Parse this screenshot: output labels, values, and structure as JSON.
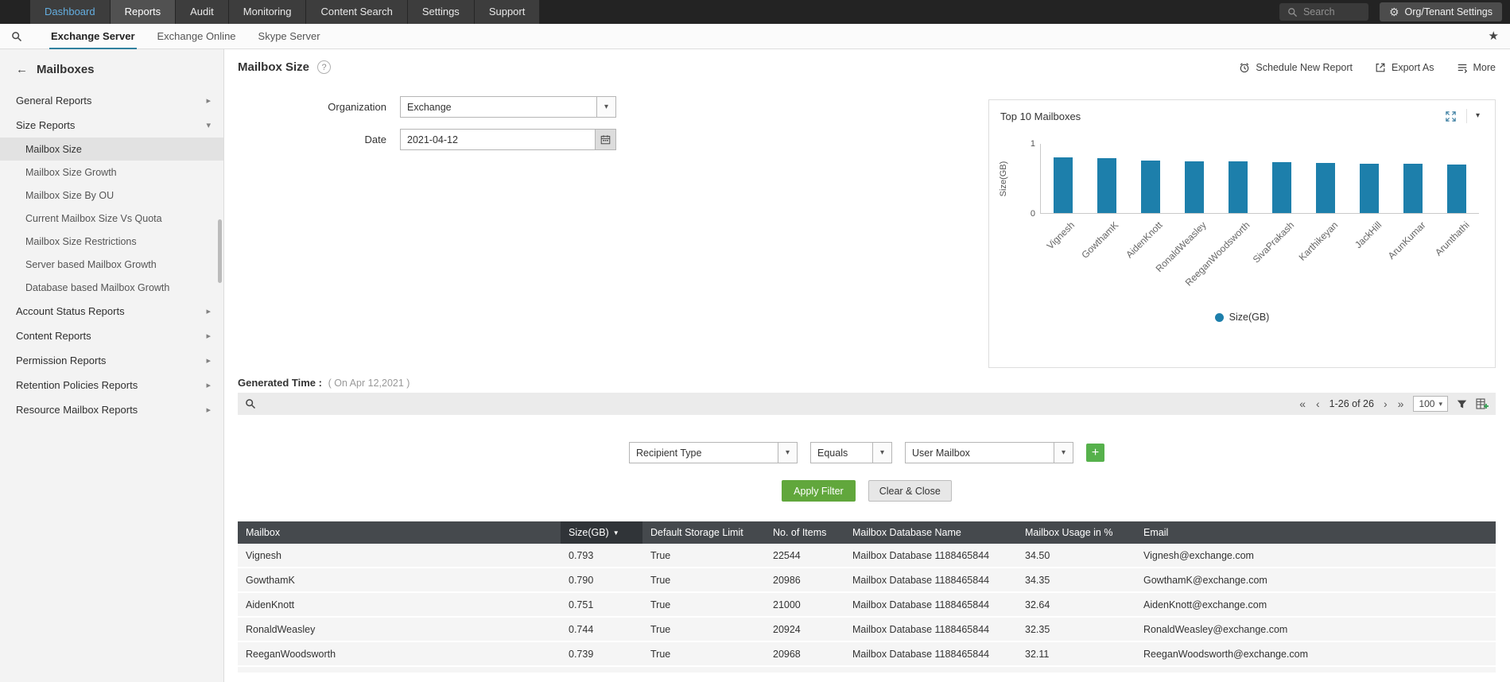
{
  "topnav": {
    "tabs": [
      {
        "label": "Dashboard",
        "active": false,
        "accent": true
      },
      {
        "label": "Reports",
        "active": true
      },
      {
        "label": "Audit",
        "active": false
      },
      {
        "label": "Monitoring",
        "active": false
      },
      {
        "label": "Content Search",
        "active": false
      },
      {
        "label": "Settings",
        "active": false
      },
      {
        "label": "Support",
        "active": false
      }
    ],
    "search_placeholder": "Search",
    "org_settings_label": "Org/Tenant Settings"
  },
  "subnav": {
    "tabs": [
      {
        "label": "Exchange Server",
        "active": true
      },
      {
        "label": "Exchange Online",
        "active": false
      },
      {
        "label": "Skype Server",
        "active": false
      }
    ]
  },
  "sidebar": {
    "back_title": "Mailboxes",
    "items": [
      {
        "label": "General Reports",
        "state": "collapsed"
      },
      {
        "label": "Size Reports",
        "state": "expanded",
        "children": [
          {
            "label": "Mailbox Size",
            "selected": true
          },
          {
            "label": "Mailbox Size Growth"
          },
          {
            "label": "Mailbox Size By OU"
          },
          {
            "label": "Current Mailbox Size Vs Quota"
          },
          {
            "label": "Mailbox Size Restrictions"
          },
          {
            "label": "Server based Mailbox Growth"
          },
          {
            "label": "Database based Mailbox Growth"
          }
        ]
      },
      {
        "label": "Account Status Reports",
        "state": "collapsed"
      },
      {
        "label": "Content Reports",
        "state": "collapsed"
      },
      {
        "label": "Permission Reports",
        "state": "collapsed"
      },
      {
        "label": "Retention Policies Reports",
        "state": "collapsed"
      },
      {
        "label": "Resource Mailbox Reports",
        "state": "collapsed"
      }
    ]
  },
  "report": {
    "title": "Mailbox Size",
    "actions": {
      "schedule": "Schedule New Report",
      "export": "Export As",
      "more": "More"
    },
    "form": {
      "organization_label": "Organization",
      "organization_value": "Exchange",
      "date_label": "Date",
      "date_value": "2021-04-12"
    },
    "generated_time_label": "Generated Time :",
    "generated_time_value": "( On Apr 12,2021 )"
  },
  "chart_data": {
    "type": "bar",
    "title": "Top 10 Mailboxes",
    "categories": [
      "Vignesh",
      "GowthamK",
      "AidenKnott",
      "RonaldWeasley",
      "ReeganWoodsworth",
      "SivaPrakash",
      "Karthikeyan",
      "JackHill",
      "ArunKumar",
      "Arunthathi"
    ],
    "values": [
      0.793,
      0.79,
      0.751,
      0.744,
      0.739,
      0.73,
      0.72,
      0.71,
      0.7,
      0.69
    ],
    "series_name": "Size(GB)",
    "ylabel": "Size(GB)",
    "xlabel": "",
    "ylim": [
      0,
      1
    ],
    "yticks": [
      0,
      1
    ],
    "legend": [
      "Size(GB)"
    ],
    "legend_position": "bottom",
    "bar_color": "#1d7fab"
  },
  "toolbar": {
    "pagination": {
      "range": "1-26 of 26",
      "page_size": "100"
    }
  },
  "filter": {
    "field_value": "Recipient Type",
    "operator_value": "Equals",
    "value_value": "User Mailbox",
    "apply_label": "Apply Filter",
    "clear_label": "Clear & Close"
  },
  "table": {
    "columns": [
      {
        "label": "Mailbox"
      },
      {
        "label": "Size(GB)",
        "sorted": "desc"
      },
      {
        "label": "Default Storage Limit"
      },
      {
        "label": "No. of Items"
      },
      {
        "label": "Mailbox Database Name"
      },
      {
        "label": "Mailbox Usage in %"
      },
      {
        "label": "Email"
      }
    ],
    "rows": [
      [
        "Vignesh",
        "0.793",
        "True",
        "22544",
        "Mailbox Database 1188465844",
        "34.50",
        "Vignesh@exchange.com"
      ],
      [
        "GowthamK",
        "0.790",
        "True",
        "20986",
        "Mailbox Database 1188465844",
        "34.35",
        "GowthamK@exchange.com"
      ],
      [
        "AidenKnott",
        "0.751",
        "True",
        "21000",
        "Mailbox Database 1188465844",
        "32.64",
        "AidenKnott@exchange.com"
      ],
      [
        "RonaldWeasley",
        "0.744",
        "True",
        "20924",
        "Mailbox Database 1188465844",
        "32.35",
        "RonaldWeasley@exchange.com"
      ],
      [
        "ReeganWoodsworth",
        "0.739",
        "True",
        "20968",
        "Mailbox Database 1188465844",
        "32.11",
        "ReeganWoodsworth@exchange.com"
      ]
    ]
  },
  "icons": {
    "gear": "⚙",
    "star": "★",
    "back_arrow": "←",
    "chevron_right": "▸",
    "chevron_down": "▾",
    "caret_down": "▾",
    "help": "?",
    "plus": "+",
    "sort_desc": "▼",
    "page_first": "«",
    "page_prev": "‹",
    "page_next": "›",
    "page_last": "»"
  },
  "colors": {
    "accent_blue": "#1d7fab",
    "apply_green": "#61a73c",
    "add_green": "#56b14c",
    "table_header": "#45494d",
    "table_header_sorted": "#303438",
    "topnav_bg": "#232323",
    "selected_item_bg": "#e2e2e2",
    "dashboard_link": "#64aee0"
  }
}
